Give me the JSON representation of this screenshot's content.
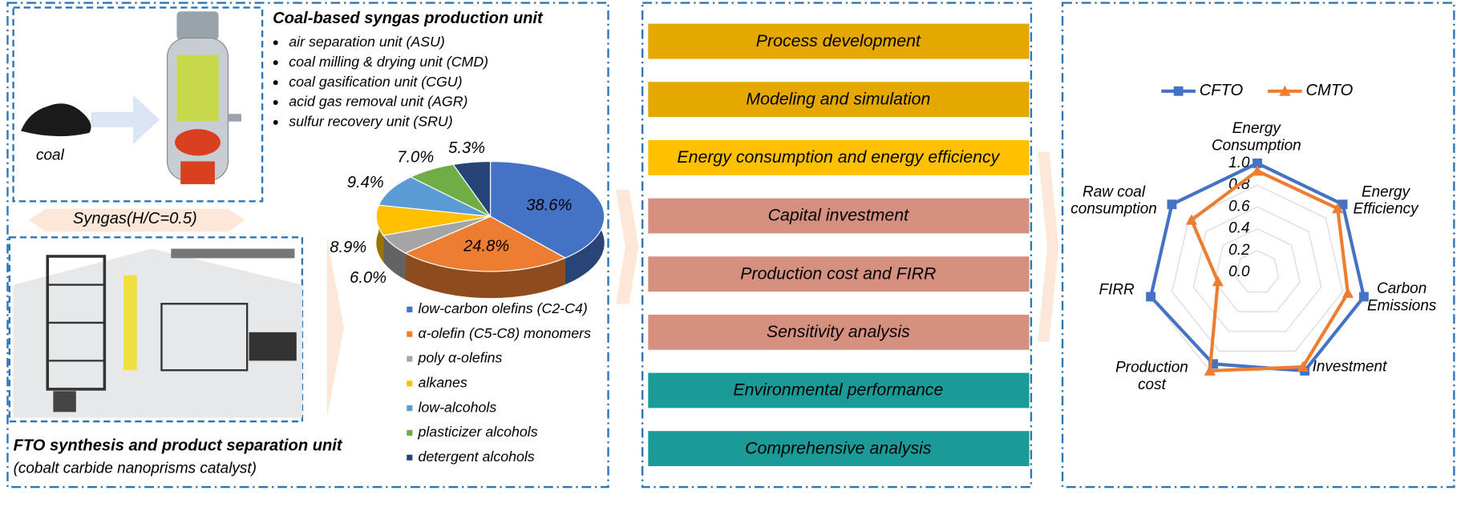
{
  "syngas_unit": {
    "title": "Coal-based syngas production unit",
    "items": [
      "air separation unit (ASU)",
      "coal milling & drying unit (CMD)",
      "coal gasification unit (CGU)",
      "acid gas removal unit (AGR)",
      "sulfur recovery unit (SRU)"
    ]
  },
  "coal_label": "coal",
  "syngas_label": "Syngas(H/C=0.5)",
  "fto_unit": {
    "title": "FTO synthesis and product separation unit",
    "subtitle": "(cobalt carbide nanoprisms catalyst)"
  },
  "product_pie": {
    "type": "pie",
    "categories": [
      "low-carbon olefins (C2-C4)",
      "α-olefin (C5-C8) monomers",
      "poly α-olefins",
      "alkanes",
      "low-alcohols",
      "plasticizer alcohols",
      "detergent alcohols"
    ],
    "values": [
      38.6,
      24.8,
      6.0,
      8.9,
      9.4,
      7.0,
      5.3
    ],
    "value_labels": [
      "38.6%",
      "24.8%",
      "6.0%",
      "8.9%",
      "9.4%",
      "7.0%",
      "5.3%"
    ],
    "colors": [
      "#4472c4",
      "#ed7d31",
      "#a5a5a5",
      "#ffc000",
      "#5b9bd5",
      "#70ad47",
      "#264478"
    ]
  },
  "analysis_steps": [
    {
      "label": "Process development",
      "color": "#e5a800"
    },
    {
      "label": "Modeling and simulation",
      "color": "#e5a800"
    },
    {
      "label": "Energy consumption and energy efficiency",
      "color": "#ffc000"
    },
    {
      "label": "Capital investment",
      "color": "#d6907f"
    },
    {
      "label": "Production cost and FIRR",
      "color": "#d6907f"
    },
    {
      "label": "Sensitivity analysis",
      "color": "#d6907f"
    },
    {
      "label": "Environmental performance",
      "color": "#1b9b97"
    },
    {
      "label": "Comprehensive analysis",
      "color": "#1b9b97"
    }
  ],
  "radar": {
    "type": "radar",
    "categories": [
      "Energy Consumption",
      "Energy Efficiency",
      "Carbon Emissions",
      "Investment",
      "Production cost",
      "FIRR",
      "Raw coal consumption"
    ],
    "series": [
      {
        "name": "CFTO",
        "color": "#4472c4",
        "values": [
          1.0,
          1.0,
          1.0,
          1.0,
          0.93,
          1.0,
          1.0
        ]
      },
      {
        "name": "CMTO",
        "color": "#ed7d31",
        "values": [
          0.93,
          0.94,
          0.85,
          0.96,
          1.0,
          0.37,
          0.77
        ]
      }
    ],
    "rlim": [
      0,
      1
    ],
    "rticks": [
      {
        "value": 0,
        "label": "0.0"
      },
      0.2,
      0.4,
      0.6,
      0.8,
      {
        "value": 1,
        "label": "1.0"
      }
    ],
    "grid": true
  }
}
